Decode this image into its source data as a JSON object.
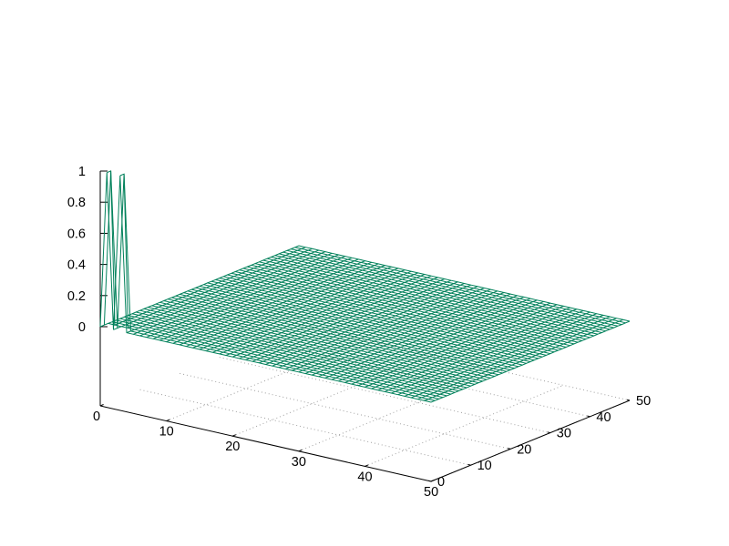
{
  "chart_data": {
    "type": "surface",
    "title": "",
    "xlabel": "",
    "ylabel": "",
    "zlabel": "",
    "xlim": [
      0,
      50
    ],
    "ylim": [
      0,
      50
    ],
    "zlim": [
      0,
      1
    ],
    "x_ticks": [
      "0",
      "10",
      "20",
      "30",
      "40",
      "50"
    ],
    "y_ticks": [
      "0",
      "10",
      "20",
      "30",
      "40",
      "50"
    ],
    "z_ticks": [
      "0",
      "0.2",
      "0.4",
      "0.6",
      "0.8",
      "1"
    ],
    "grid": true,
    "surface_color": "#00805a",
    "grid_resolution": 51,
    "surface_value_default": 0,
    "surface_peaks": [
      {
        "x": 0,
        "y": 0,
        "z": 0
      },
      {
        "x": 1,
        "y": 0,
        "z": 1
      },
      {
        "x": 2,
        "y": 0,
        "z": 0
      },
      {
        "x": 3,
        "y": 0,
        "z": 1
      },
      {
        "x": 4,
        "y": 0,
        "z": 0
      },
      {
        "x": 0,
        "y": 1,
        "z": 0
      },
      {
        "x": 1,
        "y": 1,
        "z": 1
      },
      {
        "x": 3,
        "y": 1,
        "z": 1
      }
    ]
  }
}
